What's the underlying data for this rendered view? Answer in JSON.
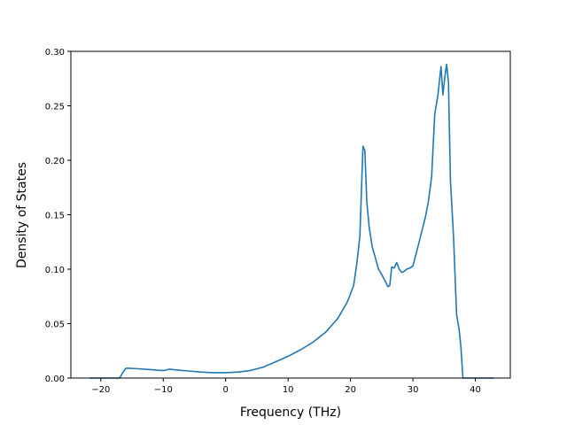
{
  "chart_data": {
    "type": "line",
    "title": "",
    "xlabel": "Frequency (THz)",
    "ylabel": "Density of States",
    "xlim": [
      -24.8,
      45.6
    ],
    "ylim": [
      0,
      0.3
    ],
    "grid": false,
    "x_ticks": [
      -20,
      -10,
      0,
      10,
      20,
      30,
      40
    ],
    "x_tick_labels": [
      "−20",
      "−10",
      "0",
      "10",
      "20",
      "30",
      "40"
    ],
    "y_ticks": [
      0.0,
      0.05,
      0.1,
      0.15,
      0.2,
      0.25,
      0.3
    ],
    "y_tick_labels": [
      "0.00",
      "0.05",
      "0.10",
      "0.15",
      "0.20",
      "0.25",
      "0.30"
    ],
    "series": [
      {
        "color": "#1f77b4",
        "x": [
          -21.8,
          -17.0,
          -16.5,
          -16.0,
          -15.5,
          -14.0,
          -12.0,
          -11.0,
          -10.0,
          -9.5,
          -9.0,
          -8.0,
          -6.0,
          -4.0,
          -2.0,
          0.0,
          2.0,
          4.0,
          6.0,
          8.0,
          10.0,
          12.0,
          14.0,
          16.0,
          18.0,
          19.5,
          20.5,
          21.0,
          21.5,
          22.0,
          22.3,
          22.6,
          23.0,
          23.5,
          24.0,
          24.5,
          25.0,
          26.0,
          26.3,
          26.6,
          27.0,
          27.4,
          27.8,
          28.2,
          28.6,
          29.0,
          29.5,
          30.0,
          31.0,
          32.0,
          32.5,
          33.0,
          33.5,
          34.0,
          34.5,
          34.8,
          35.1,
          35.4,
          35.7,
          36.0,
          36.5,
          37.0,
          37.4,
          37.7,
          38.0,
          43.0
        ],
        "y": [
          0.0,
          0.0,
          0.005,
          0.009,
          0.009,
          0.0085,
          0.0078,
          0.0072,
          0.0068,
          0.0075,
          0.0082,
          0.0075,
          0.0065,
          0.0055,
          0.005,
          0.005,
          0.0055,
          0.007,
          0.01,
          0.015,
          0.02,
          0.026,
          0.033,
          0.042,
          0.055,
          0.07,
          0.085,
          0.105,
          0.13,
          0.213,
          0.209,
          0.162,
          0.138,
          0.12,
          0.11,
          0.1,
          0.095,
          0.084,
          0.085,
          0.102,
          0.101,
          0.106,
          0.1,
          0.097,
          0.098,
          0.1,
          0.101,
          0.103,
          0.125,
          0.148,
          0.163,
          0.185,
          0.242,
          0.26,
          0.286,
          0.26,
          0.276,
          0.288,
          0.272,
          0.182,
          0.13,
          0.058,
          0.045,
          0.028,
          0.0,
          0.0
        ]
      }
    ]
  }
}
